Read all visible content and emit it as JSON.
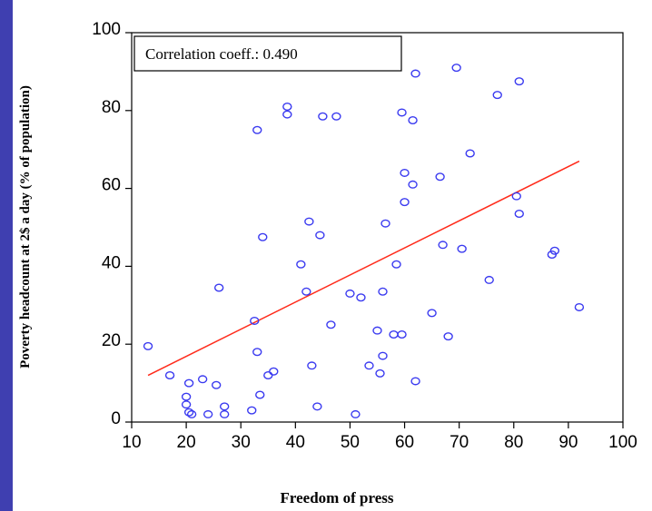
{
  "chart_data": {
    "type": "scatter",
    "title": "",
    "xlabel": "Freedom of press",
    "ylabel": "Poverty headcount at 2$ a day (% of population)",
    "xlim": [
      10,
      100
    ],
    "ylim": [
      0,
      100
    ],
    "x_ticks": [
      "10",
      "20",
      "30",
      "40",
      "50",
      "60",
      "70",
      "80",
      "90",
      "100"
    ],
    "y_ticks": [
      "0",
      "20",
      "40",
      "60",
      "80",
      "100"
    ],
    "annotation": "Correlation coeff.: 0.490",
    "colors": {
      "points": "#3a3af0",
      "trend": "#ff2a1a"
    },
    "trendline": {
      "x": [
        13,
        92
      ],
      "y": [
        12,
        67
      ]
    },
    "points": [
      {
        "x": 13,
        "y": 19.5
      },
      {
        "x": 17,
        "y": 12
      },
      {
        "x": 20,
        "y": 6.5
      },
      {
        "x": 20,
        "y": 4.5
      },
      {
        "x": 20.5,
        "y": 2.5
      },
      {
        "x": 21,
        "y": 2
      },
      {
        "x": 20.5,
        "y": 10
      },
      {
        "x": 23,
        "y": 11
      },
      {
        "x": 24,
        "y": 2
      },
      {
        "x": 25.5,
        "y": 9.5
      },
      {
        "x": 26,
        "y": 34.5
      },
      {
        "x": 27,
        "y": 4
      },
      {
        "x": 27,
        "y": 2
      },
      {
        "x": 32,
        "y": 3
      },
      {
        "x": 32.5,
        "y": 26
      },
      {
        "x": 33,
        "y": 18
      },
      {
        "x": 33.5,
        "y": 7
      },
      {
        "x": 34,
        "y": 47.5
      },
      {
        "x": 33,
        "y": 75
      },
      {
        "x": 35,
        "y": 12
      },
      {
        "x": 36,
        "y": 13
      },
      {
        "x": 38.5,
        "y": 81
      },
      {
        "x": 38.5,
        "y": 79
      },
      {
        "x": 41,
        "y": 40.5
      },
      {
        "x": 42,
        "y": 33.5
      },
      {
        "x": 42.5,
        "y": 51.5
      },
      {
        "x": 43,
        "y": 14.5
      },
      {
        "x": 44,
        "y": 4
      },
      {
        "x": 44.5,
        "y": 48
      },
      {
        "x": 45,
        "y": 78.5
      },
      {
        "x": 46.5,
        "y": 25
      },
      {
        "x": 47.5,
        "y": 78.5
      },
      {
        "x": 50,
        "y": 33
      },
      {
        "x": 51,
        "y": 2
      },
      {
        "x": 52,
        "y": 32
      },
      {
        "x": 53.5,
        "y": 14.5
      },
      {
        "x": 55,
        "y": 23.5
      },
      {
        "x": 55.5,
        "y": 12.5
      },
      {
        "x": 56,
        "y": 33.5
      },
      {
        "x": 56,
        "y": 17
      },
      {
        "x": 56.5,
        "y": 51
      },
      {
        "x": 58,
        "y": 22.5
      },
      {
        "x": 58.5,
        "y": 40.5
      },
      {
        "x": 59.5,
        "y": 79.5
      },
      {
        "x": 59.5,
        "y": 22.5
      },
      {
        "x": 60,
        "y": 64
      },
      {
        "x": 60,
        "y": 56.5
      },
      {
        "x": 61.5,
        "y": 61
      },
      {
        "x": 61.5,
        "y": 77.5
      },
      {
        "x": 62,
        "y": 89.5
      },
      {
        "x": 62,
        "y": 10.5
      },
      {
        "x": 65,
        "y": 28
      },
      {
        "x": 66.5,
        "y": 63
      },
      {
        "x": 67,
        "y": 45.5
      },
      {
        "x": 68,
        "y": 22
      },
      {
        "x": 69.5,
        "y": 91
      },
      {
        "x": 70.5,
        "y": 44.5
      },
      {
        "x": 72,
        "y": 69
      },
      {
        "x": 75.5,
        "y": 36.5
      },
      {
        "x": 77,
        "y": 84
      },
      {
        "x": 80.5,
        "y": 58
      },
      {
        "x": 81,
        "y": 53.5
      },
      {
        "x": 81,
        "y": 87.5
      },
      {
        "x": 87,
        "y": 43
      },
      {
        "x": 87.5,
        "y": 44
      },
      {
        "x": 92,
        "y": 29.5
      }
    ]
  }
}
